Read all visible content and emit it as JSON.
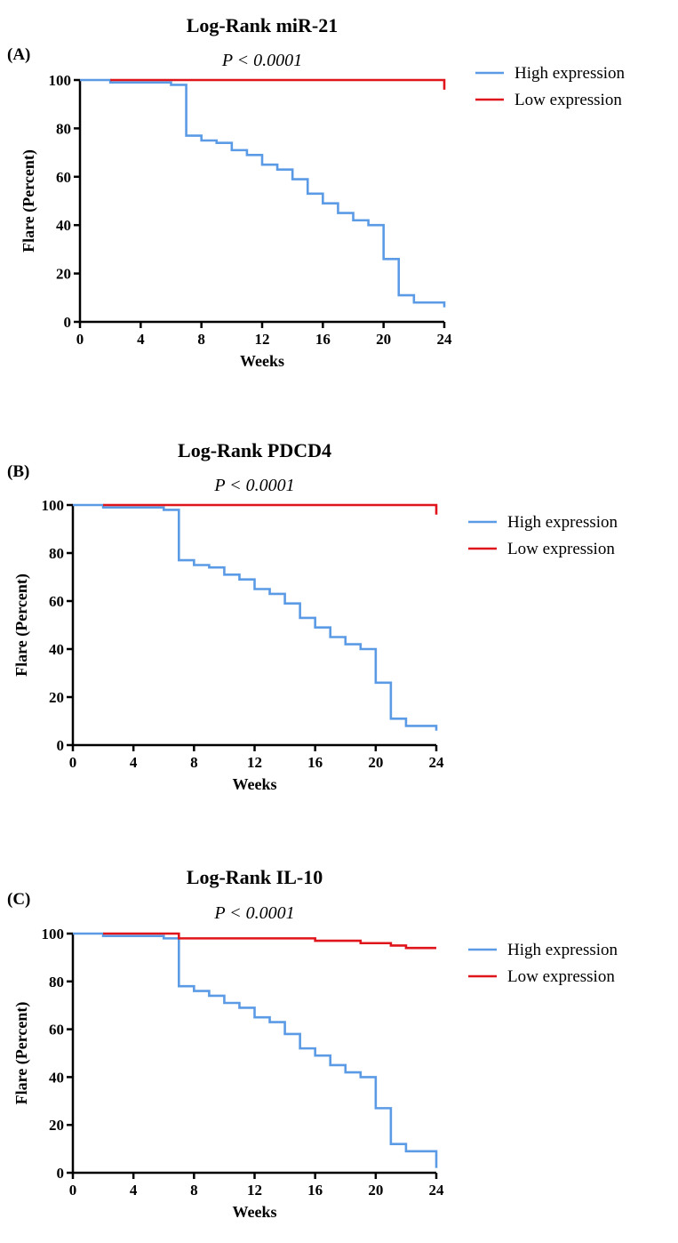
{
  "chart_data": [
    {
      "type": "line",
      "panel_label": "(A)",
      "title": "Log-Rank miR-21",
      "annotation": "P < 0.0001",
      "xlabel": "Weeks",
      "ylabel": "Flare (Percent)",
      "xlim": [
        0,
        24
      ],
      "ylim": [
        0,
        100
      ],
      "xticks": [
        "0",
        "4",
        "8",
        "12",
        "16",
        "20",
        "24"
      ],
      "yticks": [
        "0",
        "20",
        "40",
        "60",
        "80",
        "100"
      ],
      "legend_position": "right",
      "step": true,
      "series": [
        {
          "name": "High expression",
          "color": "#5b9be6",
          "x": [
            0,
            2,
            6,
            7,
            8,
            9,
            10,
            11,
            12,
            13,
            14,
            15,
            16,
            17,
            18,
            19,
            20,
            21,
            22,
            24,
            24
          ],
          "y": [
            100,
            99,
            98,
            77,
            75,
            74,
            71,
            69,
            65,
            63,
            59,
            53,
            49,
            45,
            42,
            40,
            26,
            11,
            8,
            8,
            6
          ]
        },
        {
          "name": "Low expression",
          "color": "#e0151b",
          "x": [
            2,
            24,
            24
          ],
          "y": [
            100,
            100,
            96
          ]
        }
      ]
    },
    {
      "type": "line",
      "panel_label": "(B)",
      "title": "Log-Rank PDCD4",
      "annotation": "P < 0.0001",
      "xlabel": "Weeks",
      "ylabel": "Flare (Percent)",
      "xlim": [
        0,
        24
      ],
      "ylim": [
        0,
        100
      ],
      "xticks": [
        "0",
        "4",
        "8",
        "12",
        "16",
        "20",
        "24"
      ],
      "yticks": [
        "0",
        "20",
        "40",
        "60",
        "80",
        "100"
      ],
      "legend_position": "right",
      "step": true,
      "series": [
        {
          "name": "High expression",
          "color": "#5b9be6",
          "x": [
            0,
            2,
            6,
            7,
            8,
            9,
            10,
            11,
            12,
            13,
            14,
            15,
            16,
            17,
            18,
            19,
            20,
            21,
            22,
            24,
            24
          ],
          "y": [
            100,
            99,
            98,
            77,
            75,
            74,
            71,
            69,
            65,
            63,
            59,
            53,
            49,
            45,
            42,
            40,
            26,
            11,
            8,
            8,
            6
          ]
        },
        {
          "name": "Low expression",
          "color": "#e0151b",
          "x": [
            2,
            24,
            24
          ],
          "y": [
            100,
            100,
            96
          ]
        }
      ]
    },
    {
      "type": "line",
      "panel_label": "(C)",
      "title": "Log-Rank IL-10",
      "annotation": "P < 0.0001",
      "xlabel": "Weeks",
      "ylabel": "Flare (Percent)",
      "xlim": [
        0,
        24
      ],
      "ylim": [
        0,
        100
      ],
      "xticks": [
        "0",
        "4",
        "8",
        "12",
        "16",
        "20",
        "24"
      ],
      "yticks": [
        "0",
        "20",
        "40",
        "60",
        "80",
        "100"
      ],
      "legend_position": "right",
      "step": true,
      "series": [
        {
          "name": "High expression",
          "color": "#5b9be6",
          "x": [
            0,
            2,
            6,
            7,
            8,
            9,
            10,
            11,
            12,
            13,
            14,
            15,
            16,
            17,
            18,
            19,
            20,
            21,
            22,
            24,
            24
          ],
          "y": [
            100,
            99,
            98,
            78,
            76,
            74,
            71,
            69,
            65,
            63,
            58,
            52,
            49,
            45,
            42,
            40,
            27,
            12,
            9,
            9,
            2
          ]
        },
        {
          "name": "Low expression",
          "color": "#e0151b",
          "x": [
            2,
            7,
            16,
            19,
            21,
            22,
            24
          ],
          "y": [
            100,
            98,
            97,
            96,
            95,
            94,
            94
          ]
        }
      ]
    }
  ]
}
